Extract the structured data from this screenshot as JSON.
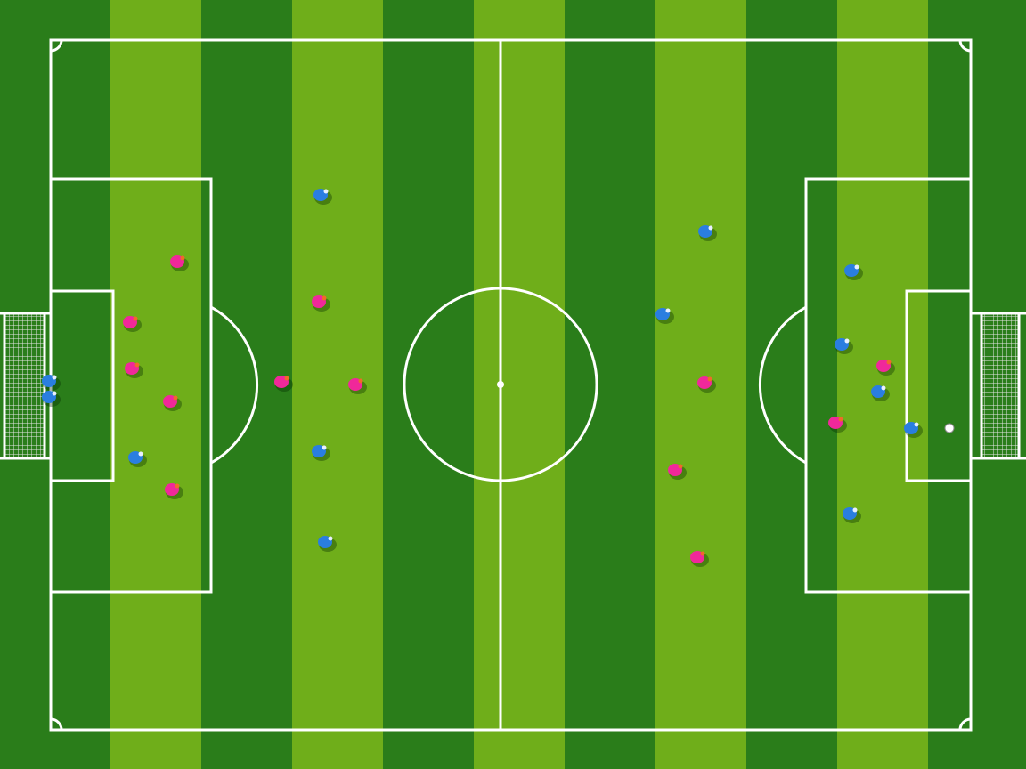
{
  "scene": {
    "grass_light": "#6fae1a",
    "grass_dark": "#2a7d1a",
    "line_color": "#ffffff",
    "teams": [
      {
        "kit": "pink",
        "color": "#f0289a",
        "accent": "#f06a2a"
      },
      {
        "kit": "blue",
        "color": "#2a7ee0",
        "accent": "#e8f0ff"
      }
    ]
  }
}
